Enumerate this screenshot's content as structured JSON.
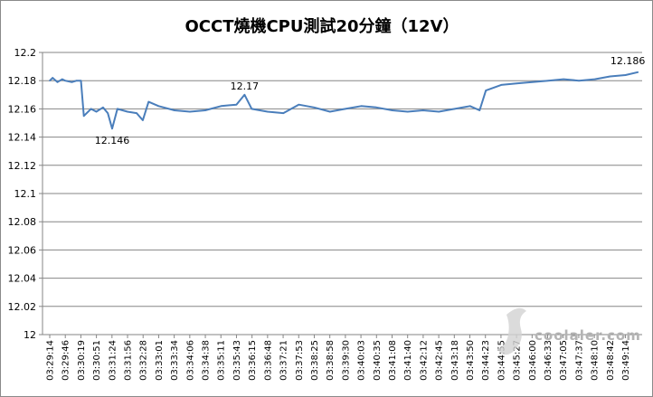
{
  "chart_data": {
    "type": "line",
    "title": "OCCT燒機CPU測試20分鐘（12V）",
    "xlabel": "",
    "ylabel": "",
    "ylim": [
      12,
      12.2
    ],
    "y_ticks": [
      "12.2",
      "12.18",
      "12.16",
      "12.14",
      "12.12",
      "12.1",
      "12.08",
      "12.06",
      "12.04",
      "12.02",
      "12"
    ],
    "grid": true,
    "legend": "none",
    "x_tick_labels": [
      "03:29:14",
      "03:29:46",
      "03:30:19",
      "03:30:51",
      "03:31:24",
      "03:31:56",
      "03:32:28",
      "03:33:01",
      "03:33:34",
      "03:34:06",
      "03:34:38",
      "03:35:11",
      "03:35:43",
      "03:36:15",
      "03:36:48",
      "03:37:21",
      "03:37:53",
      "03:38:25",
      "03:38:58",
      "03:39:30",
      "03:40:03",
      "03:40:35",
      "03:41:08",
      "03:41:40",
      "03:42:12",
      "03:42:45",
      "03:43:18",
      "03:43:50",
      "03:44:23",
      "03:44:55",
      "03:45:27",
      "03:46:00",
      "03:46:33",
      "03:47:05",
      "03:47:37",
      "03:48:10",
      "03:48:42",
      "03:49:14"
    ],
    "series": [
      {
        "color": "#4a7ebb",
        "points": [
          [
            "03:29:14",
            12.18
          ],
          [
            "03:29:20",
            12.182
          ],
          [
            "03:29:30",
            12.179
          ],
          [
            "03:29:40",
            12.181
          ],
          [
            "03:29:46",
            12.18
          ],
          [
            "03:30:00",
            12.179
          ],
          [
            "03:30:10",
            12.18
          ],
          [
            "03:30:19",
            12.18
          ],
          [
            "03:30:25",
            12.155
          ],
          [
            "03:30:40",
            12.16
          ],
          [
            "03:30:51",
            12.158
          ],
          [
            "03:31:05",
            12.161
          ],
          [
            "03:31:15",
            12.157
          ],
          [
            "03:31:24",
            12.146
          ],
          [
            "03:31:35",
            12.16
          ],
          [
            "03:31:56",
            12.158
          ],
          [
            "03:32:15",
            12.157
          ],
          [
            "03:32:28",
            12.152
          ],
          [
            "03:32:40",
            12.165
          ],
          [
            "03:33:01",
            12.162
          ],
          [
            "03:33:34",
            12.159
          ],
          [
            "03:34:06",
            12.158
          ],
          [
            "03:34:38",
            12.159
          ],
          [
            "03:35:11",
            12.162
          ],
          [
            "03:35:43",
            12.163
          ],
          [
            "03:36:00",
            12.17
          ],
          [
            "03:36:15",
            12.16
          ],
          [
            "03:36:48",
            12.158
          ],
          [
            "03:37:21",
            12.157
          ],
          [
            "03:37:53",
            12.163
          ],
          [
            "03:38:25",
            12.161
          ],
          [
            "03:38:58",
            12.158
          ],
          [
            "03:39:30",
            12.16
          ],
          [
            "03:40:03",
            12.162
          ],
          [
            "03:40:35",
            12.161
          ],
          [
            "03:41:08",
            12.159
          ],
          [
            "03:41:40",
            12.158
          ],
          [
            "03:42:12",
            12.159
          ],
          [
            "03:42:45",
            12.158
          ],
          [
            "03:43:18",
            12.16
          ],
          [
            "03:43:50",
            12.162
          ],
          [
            "03:44:10",
            12.159
          ],
          [
            "03:44:23",
            12.173
          ],
          [
            "03:44:55",
            12.177
          ],
          [
            "03:45:27",
            12.178
          ],
          [
            "03:46:00",
            12.179
          ],
          [
            "03:46:33",
            12.18
          ],
          [
            "03:47:05",
            12.181
          ],
          [
            "03:47:37",
            12.18
          ],
          [
            "03:48:10",
            12.181
          ],
          [
            "03:48:42",
            12.183
          ],
          [
            "03:49:14",
            12.184
          ],
          [
            "03:49:40",
            12.186
          ]
        ]
      }
    ],
    "annotations": [
      {
        "label": "12.146",
        "x": "03:31:24",
        "y": 12.146
      },
      {
        "label": "12.17",
        "x": "03:36:00",
        "y": 12.17
      },
      {
        "label": "12.186",
        "x": "03:49:40",
        "y": 12.186
      }
    ]
  },
  "watermark": {
    "text": "coolaler.com"
  }
}
